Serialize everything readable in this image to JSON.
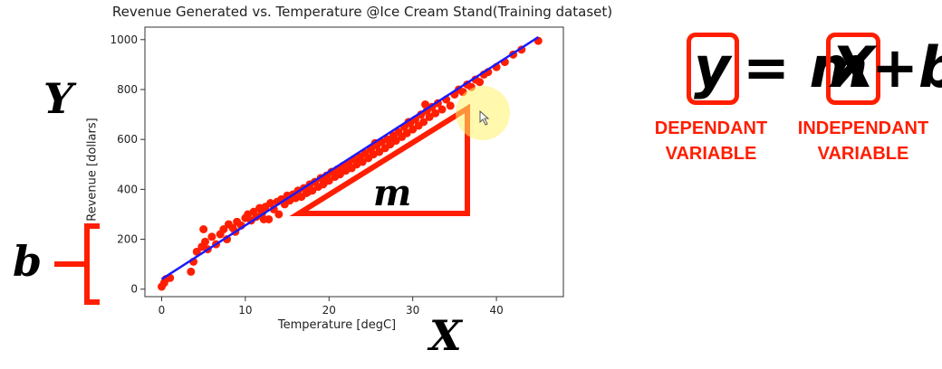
{
  "chart_data": {
    "type": "scatter",
    "title": "Revenue Generated vs. Temperature @Ice Cream Stand(Training dataset)",
    "xlabel": "Temperature [degC]",
    "ylabel": "Revenue [dollars]",
    "xlim": [
      -2,
      48
    ],
    "ylim": [
      -30,
      1050
    ],
    "xticks": [
      0,
      10,
      20,
      30,
      40
    ],
    "yticks": [
      0,
      200,
      400,
      600,
      800,
      1000
    ],
    "grid": false,
    "point_color": "#ff1e00",
    "line_color": "#1a1aff",
    "fit_line": {
      "x": [
        0,
        45
      ],
      "y": [
        40,
        1010
      ]
    },
    "points": [
      [
        0,
        10
      ],
      [
        0.3,
        25
      ],
      [
        0.5,
        40
      ],
      [
        1,
        45
      ],
      [
        3.5,
        70
      ],
      [
        3.8,
        110
      ],
      [
        4.2,
        150
      ],
      [
        4.8,
        170
      ],
      [
        5,
        240
      ],
      [
        5.2,
        190
      ],
      [
        5.5,
        160
      ],
      [
        6,
        210
      ],
      [
        6.5,
        180
      ],
      [
        7,
        220
      ],
      [
        7.4,
        240
      ],
      [
        7.8,
        200
      ],
      [
        8,
        260
      ],
      [
        8.5,
        245
      ],
      [
        9,
        270
      ],
      [
        9.5,
        255
      ],
      [
        10,
        285
      ],
      [
        10.3,
        300
      ],
      [
        10.7,
        275
      ],
      [
        11,
        310
      ],
      [
        11.3,
        290
      ],
      [
        11.7,
        325
      ],
      [
        12,
        305
      ],
      [
        12.4,
        330
      ],
      [
        12.8,
        280
      ],
      [
        13,
        345
      ],
      [
        13.4,
        320
      ],
      [
        13.8,
        350
      ],
      [
        14,
        300
      ],
      [
        14.3,
        360
      ],
      [
        14.7,
        340
      ],
      [
        15,
        375
      ],
      [
        15.3,
        355
      ],
      [
        15.7,
        380
      ],
      [
        16,
        365
      ],
      [
        16.3,
        395
      ],
      [
        16.7,
        370
      ],
      [
        17,
        405
      ],
      [
        17.3,
        385
      ],
      [
        17.7,
        420
      ],
      [
        18,
        395
      ],
      [
        18.3,
        430
      ],
      [
        18.7,
        410
      ],
      [
        19,
        445
      ],
      [
        19.3,
        420
      ],
      [
        19.7,
        455
      ],
      [
        20,
        435
      ],
      [
        20.3,
        470
      ],
      [
        20.7,
        450
      ],
      [
        21,
        480
      ],
      [
        21.3,
        460
      ],
      [
        21.7,
        495
      ],
      [
        22,
        475
      ],
      [
        22.3,
        505
      ],
      [
        22.7,
        485
      ],
      [
        23,
        520
      ],
      [
        23.3,
        500
      ],
      [
        23.7,
        530
      ],
      [
        24,
        510
      ],
      [
        24.3,
        545
      ],
      [
        24.7,
        525
      ],
      [
        25,
        560
      ],
      [
        25.3,
        540
      ],
      [
        25.7,
        575
      ],
      [
        26,
        550
      ],
      [
        26.3,
        590
      ],
      [
        26.7,
        565
      ],
      [
        27,
        600
      ],
      [
        27.3,
        580
      ],
      [
        27.7,
        615
      ],
      [
        28,
        595
      ],
      [
        28.3,
        630
      ],
      [
        28.7,
        610
      ],
      [
        29,
        650
      ],
      [
        29.3,
        625
      ],
      [
        29.7,
        665
      ],
      [
        30,
        640
      ],
      [
        30.3,
        680
      ],
      [
        30.7,
        655
      ],
      [
        31,
        700
      ],
      [
        31.3,
        670
      ],
      [
        31.7,
        715
      ],
      [
        32,
        690
      ],
      [
        32.3,
        730
      ],
      [
        32.7,
        705
      ],
      [
        33,
        745
      ],
      [
        33.5,
        720
      ],
      [
        34,
        760
      ],
      [
        34.5,
        735
      ],
      [
        35,
        780
      ],
      [
        35.5,
        800
      ],
      [
        36,
        790
      ],
      [
        36.5,
        820
      ],
      [
        37,
        810
      ],
      [
        37.5,
        840
      ],
      [
        38,
        830
      ],
      [
        39,
        870
      ],
      [
        40,
        890
      ],
      [
        41,
        910
      ],
      [
        42,
        940
      ],
      [
        43,
        960
      ],
      [
        45,
        995
      ],
      [
        38.5,
        860
      ],
      [
        31.5,
        740
      ],
      [
        27.5,
        590
      ],
      [
        23.5,
        510
      ],
      [
        17.5,
        390
      ],
      [
        12.2,
        280
      ],
      [
        8.8,
        230
      ],
      [
        25.5,
        585
      ],
      [
        29.5,
        670
      ],
      [
        21.5,
        470
      ],
      [
        19.5,
        430
      ]
    ]
  },
  "annotations": {
    "y_axis_letter": "Y",
    "intercept_letter": "b",
    "x_axis_letter": "X",
    "slope_letter": "m",
    "annotation_color": "#ff1e00"
  },
  "equation": {
    "y": "y",
    "eq_m": "= m",
    "x": "X",
    "plus_b": "+b",
    "dependent_line1": "DEPENDANT",
    "dependent_line2": "VARIABLE",
    "independent_line1": "INDEPENDANT",
    "independent_line2": "VARIABLE"
  }
}
